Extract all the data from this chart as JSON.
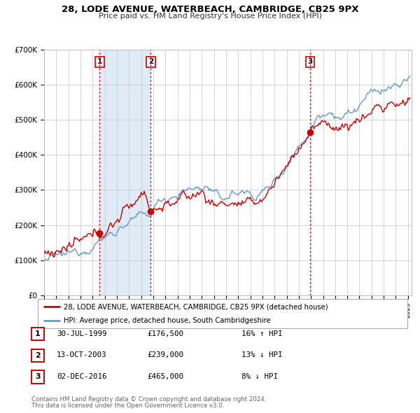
{
  "title": "28, LODE AVENUE, WATERBEACH, CAMBRIDGE, CB25 9PX",
  "subtitle": "Price paid vs. HM Land Registry's House Price Index (HPI)",
  "legend_label_red": "28, LODE AVENUE, WATERBEACH, CAMBRIDGE, CB25 9PX (detached house)",
  "legend_label_blue": "HPI: Average price, detached house, South Cambridgeshire",
  "footnote1": "Contains HM Land Registry data © Crown copyright and database right 2024.",
  "footnote2": "This data is licensed under the Open Government Licence v3.0.",
  "transactions": [
    {
      "num": 1,
      "date": "30-JUL-1999",
      "year": 1999.58,
      "price": 176500,
      "pct": "16%",
      "dir": "↑"
    },
    {
      "num": 2,
      "date": "13-OCT-2003",
      "year": 2003.79,
      "price": 239000,
      "pct": "13%",
      "dir": "↓"
    },
    {
      "num": 3,
      "date": "02-DEC-2016",
      "year": 2016.92,
      "price": 465000,
      "pct": "8%",
      "dir": "↓"
    }
  ],
  "ylim": [
    0,
    700000
  ],
  "yticks": [
    0,
    100000,
    200000,
    300000,
    400000,
    500000,
    600000,
    700000
  ],
  "ytick_labels": [
    "£0",
    "£100K",
    "£200K",
    "£300K",
    "£400K",
    "£500K",
    "£600K",
    "£700K"
  ],
  "xlim_start": 1995.0,
  "xlim_end": 2025.3,
  "red_color": "#cc0000",
  "blue_color": "#6699cc",
  "background_color": "#ffffff",
  "plot_bg_color": "#ffffff",
  "grid_color": "#cccccc",
  "shading_color": "#d6e8f5"
}
